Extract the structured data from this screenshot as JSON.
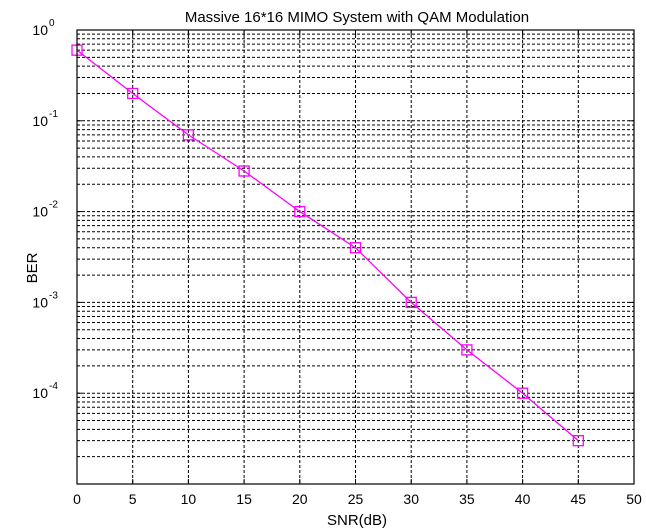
{
  "chart_data": {
    "type": "line",
    "title": "Massive 16*16 MIMO System with QAM Modulation",
    "xlabel": "SNR(dB)",
    "ylabel": "BER",
    "xlim": [
      0,
      50
    ],
    "ylim": [
      1e-05,
      1
    ],
    "yscale": "log",
    "grid": true,
    "legend": "none",
    "x_ticks": [
      "0",
      "5",
      "10",
      "15",
      "20",
      "25",
      "30",
      "35",
      "40",
      "45",
      "50"
    ],
    "y_ticks": [
      {
        "base": "10",
        "exp": "0",
        "value": 1
      },
      {
        "base": "10",
        "exp": "-1",
        "value": 0.1
      },
      {
        "base": "10",
        "exp": "-2",
        "value": 0.01
      },
      {
        "base": "10",
        "exp": "-3",
        "value": 0.001
      },
      {
        "base": "10",
        "exp": "-4",
        "value": 0.0001
      }
    ],
    "series": [
      {
        "marker": "square",
        "color": "#ff00ff",
        "x": [
          0,
          5,
          10,
          15,
          20,
          25,
          30,
          35,
          40,
          45
        ],
        "y": [
          0.6,
          0.2,
          0.07,
          0.028,
          0.01,
          0.004,
          0.001,
          0.0003,
          0.0001,
          3e-05
        ]
      }
    ]
  }
}
